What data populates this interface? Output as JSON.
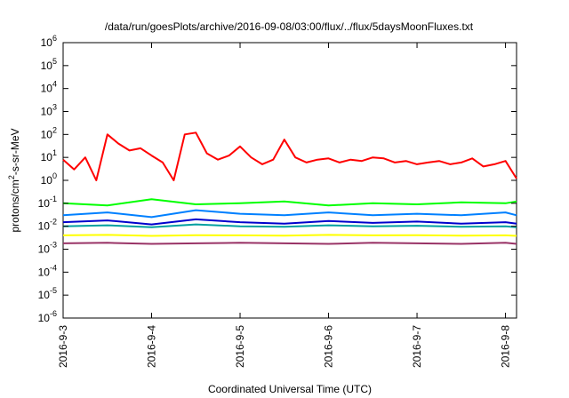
{
  "chart_data": {
    "type": "line",
    "title": "/data/run/goesPlots/archive/2016-09-08/03:00/flux/../flux/5daysMoonFluxes.txt",
    "xlabel": "Coordinated Universal Time (UTC)",
    "ylabel": {
      "base": "protons/cm",
      "sup": "2",
      "rest": "-s-sr-MeV"
    },
    "x_scale": "time",
    "xlim": [
      "2016-09-03T00:00",
      "2016-09-08T03:00"
    ],
    "x_ticks": [
      {
        "label": "2016-9-3",
        "value": "2016-09-03T00:00"
      },
      {
        "label": "2016-9-4",
        "value": "2016-09-04T00:00"
      },
      {
        "label": "2016-9-5",
        "value": "2016-09-05T00:00"
      },
      {
        "label": "2016-9-6",
        "value": "2016-09-06T00:00"
      },
      {
        "label": "2016-9-7",
        "value": "2016-09-07T00:00"
      },
      {
        "label": "2016-9-8",
        "value": "2016-09-08T00:00"
      }
    ],
    "y_scale": "log",
    "ylim": [
      1e-06,
      1000000.0
    ],
    "y_ticks": [
      {
        "base": "10",
        "exp": "-6",
        "value": 1e-06
      },
      {
        "base": "10",
        "exp": "-5",
        "value": 1e-05
      },
      {
        "base": "10",
        "exp": "-4",
        "value": 0.0001
      },
      {
        "base": "10",
        "exp": "-3",
        "value": 0.001
      },
      {
        "base": "10",
        "exp": "-2",
        "value": 0.01
      },
      {
        "base": "10",
        "exp": "-1",
        "value": 0.1
      },
      {
        "base": "10",
        "exp": "0",
        "value": 1
      },
      {
        "base": "10",
        "exp": "1",
        "value": 10
      },
      {
        "base": "10",
        "exp": "2",
        "value": 100
      },
      {
        "base": "10",
        "exp": "3",
        "value": 1000
      },
      {
        "base": "10",
        "exp": "4",
        "value": 10000
      },
      {
        "base": "10",
        "exp": "5",
        "value": 100000
      },
      {
        "base": "10",
        "exp": "6",
        "value": 1000000
      }
    ],
    "grid": false,
    "legend": "none",
    "series": [
      {
        "color": "#ff0000",
        "x": [
          "2016-09-03T00:00",
          "2016-09-03T03:00",
          "2016-09-03T06:00",
          "2016-09-03T09:00",
          "2016-09-03T12:00",
          "2016-09-03T15:00",
          "2016-09-03T18:00",
          "2016-09-03T21:00",
          "2016-09-04T00:00",
          "2016-09-04T03:00",
          "2016-09-04T06:00",
          "2016-09-04T09:00",
          "2016-09-04T12:00",
          "2016-09-04T15:00",
          "2016-09-04T18:00",
          "2016-09-04T21:00",
          "2016-09-05T00:00",
          "2016-09-05T03:00",
          "2016-09-05T06:00",
          "2016-09-05T09:00",
          "2016-09-05T12:00",
          "2016-09-05T15:00",
          "2016-09-05T18:00",
          "2016-09-05T21:00",
          "2016-09-06T00:00",
          "2016-09-06T03:00",
          "2016-09-06T06:00",
          "2016-09-06T09:00",
          "2016-09-06T12:00",
          "2016-09-06T15:00",
          "2016-09-06T18:00",
          "2016-09-06T21:00",
          "2016-09-07T00:00",
          "2016-09-07T03:00",
          "2016-09-07T06:00",
          "2016-09-07T09:00",
          "2016-09-07T12:00",
          "2016-09-07T15:00",
          "2016-09-07T18:00",
          "2016-09-07T21:00",
          "2016-09-08T00:00",
          "2016-09-08T03:00"
        ],
        "y": [
          8,
          3,
          10,
          1,
          100,
          40,
          20,
          25,
          12,
          6,
          1,
          100,
          120,
          15,
          8,
          12,
          30,
          10,
          5,
          8,
          60,
          10,
          6,
          8,
          9,
          6,
          8,
          7,
          10,
          9,
          6,
          7,
          5,
          6,
          7,
          5,
          6,
          9,
          4,
          5,
          7,
          1.2
        ]
      },
      {
        "color": "#00ff00",
        "x": [
          "2016-09-03T00:00",
          "2016-09-03T12:00",
          "2016-09-04T00:00",
          "2016-09-04T12:00",
          "2016-09-05T00:00",
          "2016-09-05T12:00",
          "2016-09-06T00:00",
          "2016-09-06T12:00",
          "2016-09-07T00:00",
          "2016-09-07T12:00",
          "2016-09-08T00:00",
          "2016-09-08T03:00"
        ],
        "y": [
          0.1,
          0.08,
          0.15,
          0.09,
          0.1,
          0.12,
          0.08,
          0.1,
          0.09,
          0.11,
          0.1,
          0.12
        ]
      },
      {
        "color": "#0080ff",
        "x": [
          "2016-09-03T00:00",
          "2016-09-03T12:00",
          "2016-09-04T00:00",
          "2016-09-04T12:00",
          "2016-09-05T00:00",
          "2016-09-05T12:00",
          "2016-09-06T00:00",
          "2016-09-06T12:00",
          "2016-09-07T00:00",
          "2016-09-07T12:00",
          "2016-09-08T00:00",
          "2016-09-08T03:00"
        ],
        "y": [
          0.03,
          0.04,
          0.025,
          0.05,
          0.035,
          0.03,
          0.04,
          0.03,
          0.035,
          0.03,
          0.04,
          0.03
        ]
      },
      {
        "color": "#0000cc",
        "x": [
          "2016-09-03T00:00",
          "2016-09-03T12:00",
          "2016-09-04T00:00",
          "2016-09-04T12:00",
          "2016-09-05T00:00",
          "2016-09-05T12:00",
          "2016-09-06T00:00",
          "2016-09-06T12:00",
          "2016-09-07T00:00",
          "2016-09-07T12:00",
          "2016-09-08T00:00",
          "2016-09-08T03:00"
        ],
        "y": [
          0.015,
          0.018,
          0.012,
          0.02,
          0.015,
          0.013,
          0.017,
          0.014,
          0.016,
          0.013,
          0.015,
          0.013
        ]
      },
      {
        "color": "#00a0a0",
        "x": [
          "2016-09-03T00:00",
          "2016-09-03T12:00",
          "2016-09-04T00:00",
          "2016-09-04T12:00",
          "2016-09-05T00:00",
          "2016-09-05T12:00",
          "2016-09-06T00:00",
          "2016-09-06T12:00",
          "2016-09-07T00:00",
          "2016-09-07T12:00",
          "2016-09-08T00:00",
          "2016-09-08T03:00"
        ],
        "y": [
          0.01,
          0.011,
          0.009,
          0.012,
          0.01,
          0.0095,
          0.011,
          0.01,
          0.0105,
          0.0095,
          0.01,
          0.009
        ]
      },
      {
        "color": "#ffff00",
        "x": [
          "2016-09-03T00:00",
          "2016-09-03T12:00",
          "2016-09-04T00:00",
          "2016-09-04T12:00",
          "2016-09-05T00:00",
          "2016-09-05T12:00",
          "2016-09-06T00:00",
          "2016-09-06T12:00",
          "2016-09-07T00:00",
          "2016-09-07T12:00",
          "2016-09-08T00:00",
          "2016-09-08T03:00"
        ],
        "y": [
          0.004,
          0.0042,
          0.0038,
          0.0041,
          0.004,
          0.0039,
          0.0042,
          0.004,
          0.0041,
          0.0039,
          0.004,
          0.0038
        ]
      },
      {
        "color": "#993366",
        "x": [
          "2016-09-03T00:00",
          "2016-09-03T12:00",
          "2016-09-04T00:00",
          "2016-09-04T12:00",
          "2016-09-05T00:00",
          "2016-09-05T12:00",
          "2016-09-06T00:00",
          "2016-09-06T12:00",
          "2016-09-07T00:00",
          "2016-09-07T12:00",
          "2016-09-08T00:00",
          "2016-09-08T03:00"
        ],
        "y": [
          0.0018,
          0.0019,
          0.0017,
          0.0018,
          0.0019,
          0.0018,
          0.0017,
          0.0019,
          0.0018,
          0.0017,
          0.0019,
          0.0017
        ]
      }
    ]
  }
}
